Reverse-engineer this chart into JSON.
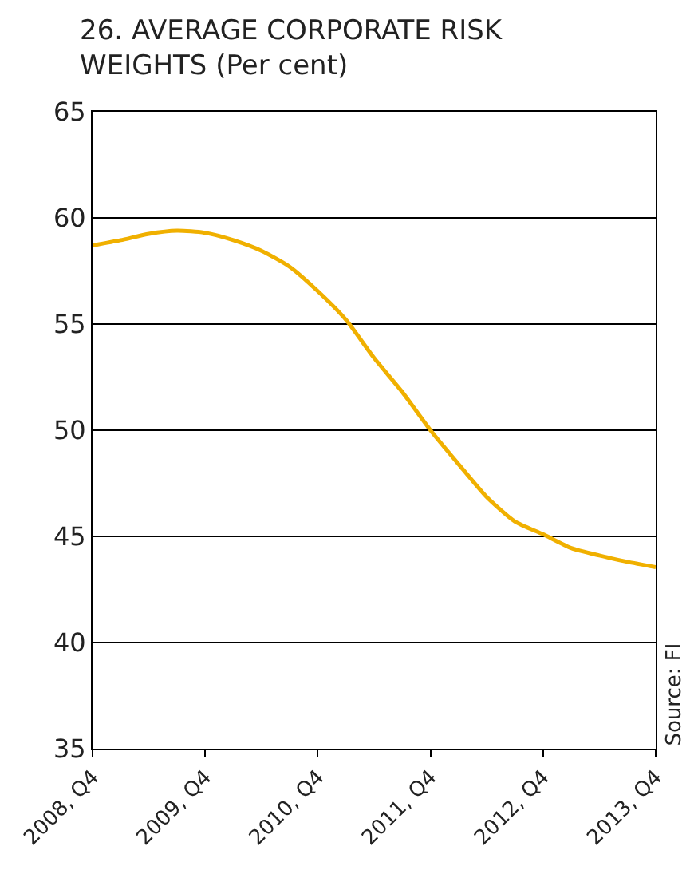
{
  "chart_data": {
    "type": "line",
    "title": "26. AVERAGE CORPORATE RISK WEIGHTS (Per cent)",
    "categories": [
      "2008, Q4",
      null,
      null,
      null,
      "2009, Q4",
      null,
      null,
      null,
      "2010, Q4",
      null,
      null,
      null,
      "2011, Q4",
      null,
      null,
      null,
      "2012, Q4",
      null,
      null,
      null,
      "2013, Q4"
    ],
    "series": [
      {
        "color": "#f0b000",
        "values": [
          58.7,
          58.95,
          59.25,
          59.4,
          59.3,
          58.95,
          58.45,
          57.7,
          56.55,
          55.2,
          53.4,
          51.8,
          50.0,
          48.4,
          46.85,
          45.7,
          45.1,
          44.45,
          44.1,
          43.8,
          43.55
        ]
      }
    ],
    "ylim": [
      35,
      65
    ],
    "yticks": [
      35,
      40,
      45,
      50,
      55,
      60,
      65
    ],
    "grid": "y",
    "marker": "none",
    "line_style": "solid",
    "annotations": [
      "Source: FI"
    ]
  }
}
